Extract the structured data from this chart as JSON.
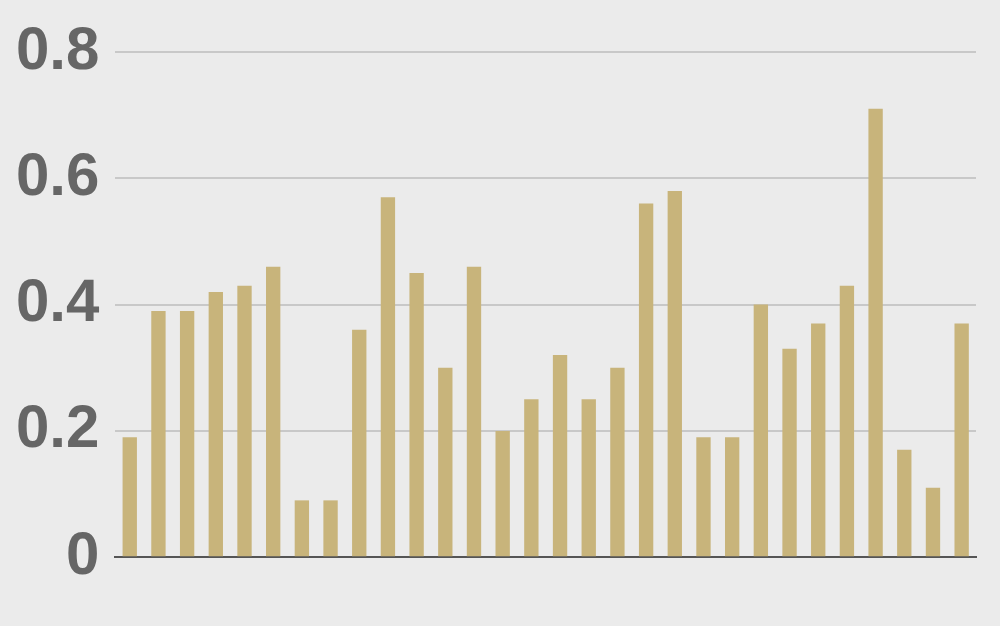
{
  "chart_data": {
    "type": "bar",
    "categories": [
      null,
      null,
      null,
      null,
      null,
      null,
      null,
      null,
      null,
      null,
      null,
      null,
      null,
      null,
      null,
      null,
      null,
      null,
      null,
      null,
      null,
      null,
      null,
      null,
      null,
      null,
      null,
      null,
      null,
      null
    ],
    "values": [
      0.19,
      0.39,
      0.39,
      0.42,
      0.43,
      0.46,
      0.09,
      0.09,
      0.36,
      0.57,
      0.45,
      0.3,
      0.46,
      0.2,
      0.25,
      0.32,
      0.25,
      0.3,
      0.56,
      0.58,
      0.19,
      0.19,
      0.4,
      0.33,
      0.37,
      0.43,
      0.71,
      0.17,
      0.11,
      0.37
    ],
    "color": "#c8b47b",
    "ylim": [
      0,
      0.8
    ],
    "yticks": [
      0,
      0.2,
      0.4,
      0.6,
      0.8
    ],
    "grid": "y",
    "legend": false
  }
}
